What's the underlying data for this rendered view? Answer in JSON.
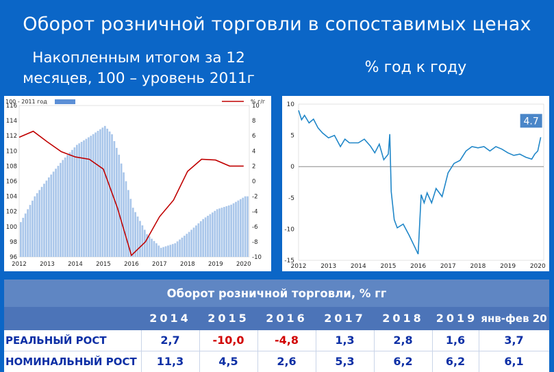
{
  "title": "Оборот розничной торговли в сопоставимых ценах",
  "subtitle_left": "Накопленным итогом за 12 месяцев, 100 – уровень 2011г",
  "subtitle_right": "% год к году",
  "colors": {
    "background": "#0b66c7",
    "bars": "#a9c6ea",
    "line_red": "#c00000",
    "line_blue": "#1f86c8",
    "badge": "#4a86c8",
    "negative": "#d10000",
    "table_text": "#0c2fa5"
  },
  "chart_data": [
    {
      "type": "bar+line",
      "legend_bar": "100 - 2011 год",
      "legend_line": "%  г/г",
      "x_ticks": [
        "2012",
        "2013",
        "2014",
        "2015",
        "2016",
        "2017",
        "2018",
        "2019",
        "2020"
      ],
      "y_left_ticks": [
        "96",
        "98",
        "100",
        "102",
        "104",
        "106",
        "108",
        "110",
        "112",
        "114",
        "116"
      ],
      "y_right_ticks": [
        "-10",
        "-8",
        "-6",
        "-4",
        "-2",
        "0",
        "2",
        "4",
        "6",
        "8",
        "10"
      ],
      "ylim_left": [
        96,
        116
      ],
      "ylim_right": [
        -10,
        10
      ],
      "bar_series": {
        "name": "100 - 2011 год",
        "points": [
          [
            2012.0,
            100.6
          ],
          [
            2012.5,
            104.0
          ],
          [
            2013.0,
            106.5
          ],
          [
            2013.5,
            108.8
          ],
          [
            2014.0,
            110.8
          ],
          [
            2014.5,
            112.0
          ],
          [
            2015.0,
            113.3
          ],
          [
            2015.25,
            112.2
          ],
          [
            2015.5,
            109.5
          ],
          [
            2016.0,
            102.5
          ],
          [
            2016.5,
            99.0
          ],
          [
            2017.0,
            97.2
          ],
          [
            2017.5,
            97.8
          ],
          [
            2018.0,
            99.3
          ],
          [
            2018.5,
            101.0
          ],
          [
            2019.0,
            102.3
          ],
          [
            2019.5,
            102.9
          ],
          [
            2020.0,
            104.0
          ]
        ]
      },
      "line_series": {
        "name": "%  г/г",
        "points": [
          [
            2012.0,
            5.8
          ],
          [
            2012.5,
            6.6
          ],
          [
            2013.0,
            5.2
          ],
          [
            2013.5,
            3.9
          ],
          [
            2014.0,
            3.2
          ],
          [
            2014.5,
            2.9
          ],
          [
            2015.0,
            1.6
          ],
          [
            2015.5,
            -3.5
          ],
          [
            2016.0,
            -9.8
          ],
          [
            2016.5,
            -8.0
          ],
          [
            2017.0,
            -4.7
          ],
          [
            2017.5,
            -2.5
          ],
          [
            2018.0,
            1.3
          ],
          [
            2018.5,
            2.9
          ],
          [
            2019.0,
            2.8
          ],
          [
            2019.5,
            2.0
          ],
          [
            2020.0,
            2.0
          ]
        ]
      }
    },
    {
      "type": "line",
      "x_ticks": [
        "2012",
        "2013",
        "2014",
        "2015",
        "2016",
        "2017",
        "2018",
        "2019",
        "2020"
      ],
      "y_ticks": [
        "10",
        "5",
        "0",
        "-5",
        "-10",
        "-15"
      ],
      "ylim": [
        -15,
        10
      ],
      "last_value_label": "4.7",
      "series": [
        {
          "points": [
            [
              2012.0,
              9.0
            ],
            [
              2012.1,
              7.5
            ],
            [
              2012.2,
              8.2
            ],
            [
              2012.35,
              7.0
            ],
            [
              2012.5,
              7.6
            ],
            [
              2012.65,
              6.2
            ],
            [
              2012.8,
              5.4
            ],
            [
              2013.0,
              4.6
            ],
            [
              2013.2,
              5.0
            ],
            [
              2013.4,
              3.2
            ],
            [
              2013.55,
              4.4
            ],
            [
              2013.7,
              3.8
            ],
            [
              2014.0,
              3.8
            ],
            [
              2014.2,
              4.4
            ],
            [
              2014.4,
              3.3
            ],
            [
              2014.55,
              2.2
            ],
            [
              2014.7,
              3.6
            ],
            [
              2014.85,
              1.1
            ],
            [
              2015.0,
              2.0
            ],
            [
              2015.05,
              5.2
            ],
            [
              2015.1,
              -4.0
            ],
            [
              2015.2,
              -8.5
            ],
            [
              2015.3,
              -9.8
            ],
            [
              2015.5,
              -9.2
            ],
            [
              2015.7,
              -11.0
            ],
            [
              2015.9,
              -13.0
            ],
            [
              2016.0,
              -14.0
            ],
            [
              2016.1,
              -4.5
            ],
            [
              2016.2,
              -5.8
            ],
            [
              2016.3,
              -4.2
            ],
            [
              2016.45,
              -5.8
            ],
            [
              2016.6,
              -3.5
            ],
            [
              2016.8,
              -4.8
            ],
            [
              2017.0,
              -1.0
            ],
            [
              2017.2,
              0.5
            ],
            [
              2017.4,
              1.0
            ],
            [
              2017.6,
              2.5
            ],
            [
              2017.8,
              3.2
            ],
            [
              2018.0,
              3.0
            ],
            [
              2018.2,
              3.2
            ],
            [
              2018.4,
              2.5
            ],
            [
              2018.6,
              3.2
            ],
            [
              2018.8,
              2.8
            ],
            [
              2019.0,
              2.2
            ],
            [
              2019.2,
              1.8
            ],
            [
              2019.4,
              2.0
            ],
            [
              2019.6,
              1.5
            ],
            [
              2019.8,
              1.2
            ],
            [
              2019.9,
              2.0
            ],
            [
              2020.0,
              2.5
            ],
            [
              2020.1,
              4.7
            ]
          ]
        }
      ]
    }
  ],
  "table": {
    "title": "Оборот розничной торговли, % гг",
    "columns": [
      "2014",
      "2015",
      "2016",
      "2017",
      "2018",
      "2019",
      "янв-фев 20"
    ],
    "rows": [
      {
        "label": "РЕАЛЬНЫЙ РОСТ",
        "values": [
          "2,7",
          "-10,0",
          "-4,8",
          "1,3",
          "2,8",
          "1,6",
          "3,7"
        ]
      },
      {
        "label": "НОМИНАЛЬНЫЙ РОСТ",
        "values": [
          "11,3",
          "4,5",
          "2,6",
          "5,3",
          "6,2",
          "6,2",
          "6,1"
        ]
      }
    ]
  }
}
